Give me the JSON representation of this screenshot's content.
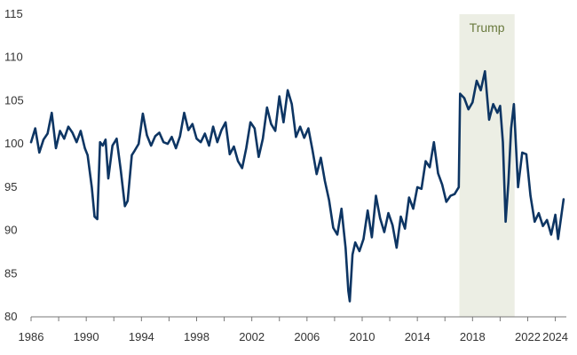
{
  "chart_data": {
    "type": "line",
    "title": "",
    "xlabel": "",
    "ylabel": "",
    "xlim": [
      1986,
      2024.8
    ],
    "ylim": [
      80,
      115
    ],
    "grid": false,
    "legend": "none",
    "y_ticks": [
      80,
      85,
      90,
      95,
      100,
      105,
      110,
      115
    ],
    "x_ticks": [
      1986,
      1990,
      1994,
      1998,
      2002,
      2006,
      2010,
      2014,
      2018,
      2022,
      2024
    ],
    "x_tick_labels": [
      "1986",
      "1990",
      "1994",
      "1998",
      "2002",
      "2006",
      "2010",
      "2014",
      "2018",
      "2022",
      "2024"
    ],
    "shaded_regions": [
      {
        "label": "Trump",
        "start": 2017.05,
        "end": 2021.05
      }
    ],
    "colors": {
      "line": "#0d3563",
      "shade": "#eceee4",
      "shade_label": "#6a7a3e",
      "axis": "#777777"
    },
    "series": [
      {
        "x": [
          1986,
          1986.3,
          1986.6,
          1986.9,
          1987.2,
          1987.5,
          1987.8,
          1988.1,
          1988.4,
          1988.7,
          1989.0,
          1989.3,
          1989.6,
          1989.9,
          1990.1,
          1990.4,
          1990.6,
          1990.8,
          1991.0,
          1991.2,
          1991.4,
          1991.6,
          1991.9,
          1992.2,
          1992.5,
          1992.8,
          1993.0,
          1993.3,
          1993.5,
          1993.8,
          1994.1,
          1994.4,
          1994.7,
          1995.0,
          1995.3,
          1995.6,
          1995.9,
          1996.2,
          1996.5,
          1996.8,
          1997.1,
          1997.4,
          1997.7,
          1998.0,
          1998.3,
          1998.6,
          1998.9,
          1999.2,
          1999.5,
          1999.8,
          2000.1,
          2000.4,
          2000.7,
          2001.0,
          2001.3,
          2001.6,
          2001.9,
          2002.2,
          2002.5,
          2002.8,
          2003.1,
          2003.4,
          2003.7,
          2004.0,
          2004.3,
          2004.6,
          2004.9,
          2005.2,
          2005.5,
          2005.8,
          2006.1,
          2006.4,
          2006.7,
          2007.0,
          2007.3,
          2007.6,
          2007.9,
          2008.2,
          2008.5,
          2008.8,
          2009.0,
          2009.1,
          2009.3,
          2009.5,
          2009.8,
          2010.1,
          2010.4,
          2010.7,
          2011.0,
          2011.3,
          2011.6,
          2011.9,
          2012.2,
          2012.5,
          2012.8,
          2013.1,
          2013.4,
          2013.7,
          2014.0,
          2014.3,
          2014.6,
          2014.9,
          2015.2,
          2015.5,
          2015.8,
          2016.1,
          2016.4,
          2016.7,
          2017.0,
          2017.1,
          2017.4,
          2017.7,
          2018.0,
          2018.3,
          2018.6,
          2018.9,
          2019.2,
          2019.5,
          2019.8,
          2020.0,
          2020.2,
          2020.4,
          2020.6,
          2020.8,
          2021.0,
          2021.3,
          2021.6,
          2021.9,
          2022.2,
          2022.5,
          2022.8,
          2023.1,
          2023.4,
          2023.7,
          2024.0,
          2024.2,
          2024.4,
          2024.6
        ],
        "values": [
          100.2,
          101.8,
          99.0,
          100.5,
          101.2,
          103.6,
          99.5,
          101.5,
          100.6,
          102.0,
          101.3,
          100.2,
          101.5,
          99.5,
          98.7,
          95.0,
          91.6,
          91.3,
          100.2,
          99.8,
          100.5,
          96.0,
          99.8,
          100.6,
          97.0,
          92.8,
          93.4,
          98.7,
          99.2,
          100.0,
          103.5,
          101.0,
          99.8,
          100.9,
          101.3,
          100.2,
          100.0,
          100.8,
          99.5,
          100.9,
          103.6,
          101.6,
          102.3,
          100.6,
          100.2,
          101.2,
          99.8,
          102.0,
          100.2,
          101.6,
          102.5,
          98.8,
          99.7,
          98.0,
          97.2,
          99.5,
          102.5,
          101.8,
          98.5,
          100.6,
          104.2,
          102.3,
          101.5,
          105.5,
          102.5,
          106.2,
          104.6,
          100.8,
          102.0,
          100.7,
          101.8,
          99.3,
          96.5,
          98.4,
          95.7,
          93.5,
          90.3,
          89.5,
          92.5,
          88.0,
          83.0,
          81.8,
          87.2,
          88.6,
          87.6,
          89.0,
          92.3,
          89.2,
          94.0,
          91.4,
          89.8,
          92.0,
          90.6,
          88.0,
          91.6,
          90.2,
          93.8,
          92.5,
          95.0,
          94.8,
          98.0,
          97.3,
          100.2,
          96.6,
          95.3,
          93.3,
          94.0,
          94.2,
          95.0,
          105.8,
          105.3,
          104.0,
          104.8,
          107.3,
          106.2,
          108.4,
          102.8,
          104.6,
          103.6,
          104.4,
          100.2,
          91.0,
          95.5,
          101.8,
          104.6,
          95.0,
          99.0,
          98.8,
          94.0,
          91.0,
          92.0,
          90.5,
          91.2,
          89.5,
          91.8,
          89.0,
          91.3,
          93.6
        ]
      }
    ]
  }
}
